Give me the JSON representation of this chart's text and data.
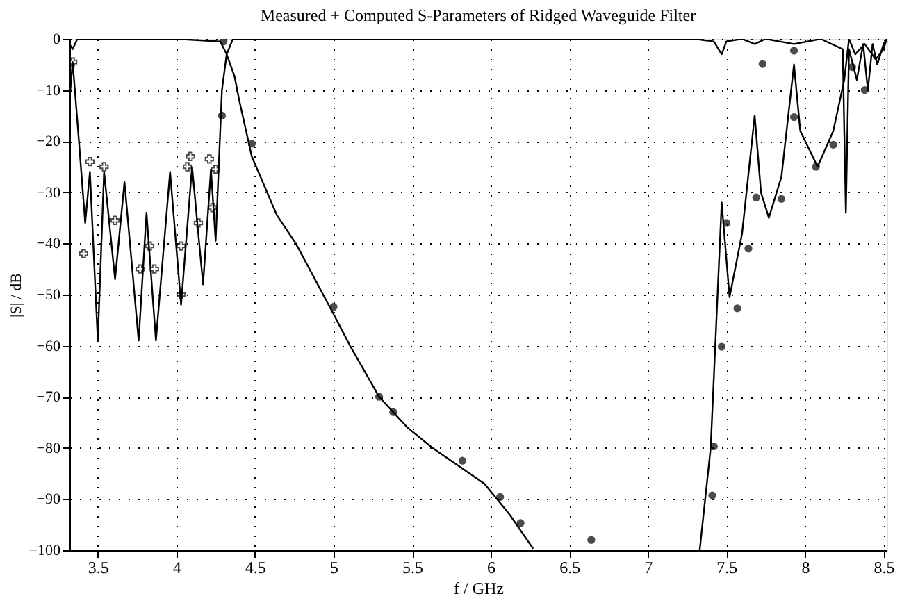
{
  "chart_data": {
    "type": "line",
    "title": "Measured + Computed S-Parameters of Ridged Waveguide Filter",
    "xlabel": "f / GHz",
    "ylabel": "|S| / dB",
    "xlim": [
      3.32,
      8.52
    ],
    "xticks": [
      3.5,
      4,
      4.5,
      5,
      5.5,
      6,
      6.5,
      7,
      7.5,
      8,
      8.5
    ],
    "ylim": [
      -100,
      0
    ],
    "yticks": [
      0,
      -10,
      -20,
      -30,
      -40,
      -50,
      -60,
      -70,
      -80,
      -90,
      -100
    ],
    "grid": true,
    "line_style": "solid",
    "marker": "none",
    "series": [
      {
        "color": "#000000",
        "x": [
          3.32,
          3.34,
          3.38,
          3.42,
          3.45,
          3.5,
          3.54,
          3.61,
          3.67,
          3.76,
          3.81,
          3.87,
          3.96,
          4.03,
          4.1,
          4.17,
          4.22,
          4.25,
          4.29,
          4.32,
          4.36,
          5.0,
          6.0,
          7.0,
          7.3,
          7.42,
          7.47,
          7.5,
          7.6,
          7.68,
          7.75,
          7.93,
          8.1,
          8.24,
          8.26,
          8.28,
          8.33,
          8.37,
          8.4,
          8.43,
          8.46,
          8.5,
          8.52
        ],
        "values": [
          -12,
          -4.5,
          -20,
          -36,
          -26,
          -59,
          -26,
          -47,
          -28,
          -59,
          -34,
          -59,
          -26,
          -52,
          -25,
          -48,
          -25.5,
          -39.5,
          -10,
          -3,
          0,
          0,
          0,
          0,
          0,
          -0.5,
          -3,
          -0.5,
          0,
          -1,
          0,
          -1,
          0,
          -2,
          -34,
          -2,
          -8,
          -1,
          -10,
          -1,
          -5,
          -1,
          0
        ]
      },
      {
        "color": "#000000",
        "x": [
          3.32,
          3.34,
          3.37,
          3.5,
          4.0,
          4.28,
          4.32,
          4.37,
          4.4,
          4.48,
          4.64,
          4.76,
          5.0,
          5.105,
          5.29,
          5.47,
          5.63,
          5.96,
          6.12,
          6.27,
          6.8,
          7.33,
          7.4,
          7.47,
          7.52,
          7.6,
          7.68,
          7.72,
          7.77,
          7.85,
          7.93,
          7.97,
          8.08,
          8.18,
          8.25,
          8.28,
          8.32,
          8.38,
          8.45,
          8.5,
          8.52
        ],
        "values": [
          -1,
          -2,
          0,
          0,
          0,
          -0.5,
          -3,
          -7.3,
          -12,
          -23,
          -34.5,
          -40,
          -53.8,
          -60,
          -70,
          -76,
          -80,
          -87,
          -93,
          -99.7,
          null,
          -100,
          -80,
          -32,
          -50.5,
          -38,
          -15,
          -30,
          -35,
          -27,
          -5,
          -18,
          -25,
          -18,
          -8,
          0,
          -3,
          -1,
          -4,
          -2,
          0
        ]
      },
      {
        "color": "#000000",
        "type": "scatter",
        "marker": "cross",
        "x": [
          3.34,
          3.41,
          3.45,
          3.54,
          3.61,
          3.77,
          3.83,
          3.86,
          4.03,
          4.03,
          4.07,
          4.09,
          4.14,
          4.21,
          4.23,
          4.25
        ],
        "values": [
          -4.5,
          -42,
          -24,
          -25,
          -35.5,
          -45,
          -40.5,
          -45,
          -40.5,
          -50,
          -25,
          -23,
          -36,
          -23.5,
          -33,
          -25.5
        ]
      },
      {
        "color": "#000000",
        "type": "scatter",
        "marker": "circle",
        "x": [
          4.29,
          4.3,
          4.48,
          5.0,
          5.29,
          5.38,
          5.82,
          6.06,
          6.19,
          6.64,
          7.41,
          7.42,
          7.47,
          7.5,
          7.57,
          7.64,
          7.69,
          7.73,
          7.85,
          7.93,
          7.93,
          8.07,
          8.18,
          8.3,
          8.38
        ],
        "values": [
          -15,
          -0.5,
          -20.5,
          -52.4,
          -70,
          -73,
          -82.5,
          -89.6,
          -94.7,
          -98,
          -89.3,
          -79.7,
          -60.2,
          -36,
          -52.7,
          -41,
          -31,
          -4.9,
          -31.3,
          -2.3,
          -15.3,
          -25,
          -20.7,
          -5.5,
          -10
        ]
      }
    ]
  }
}
